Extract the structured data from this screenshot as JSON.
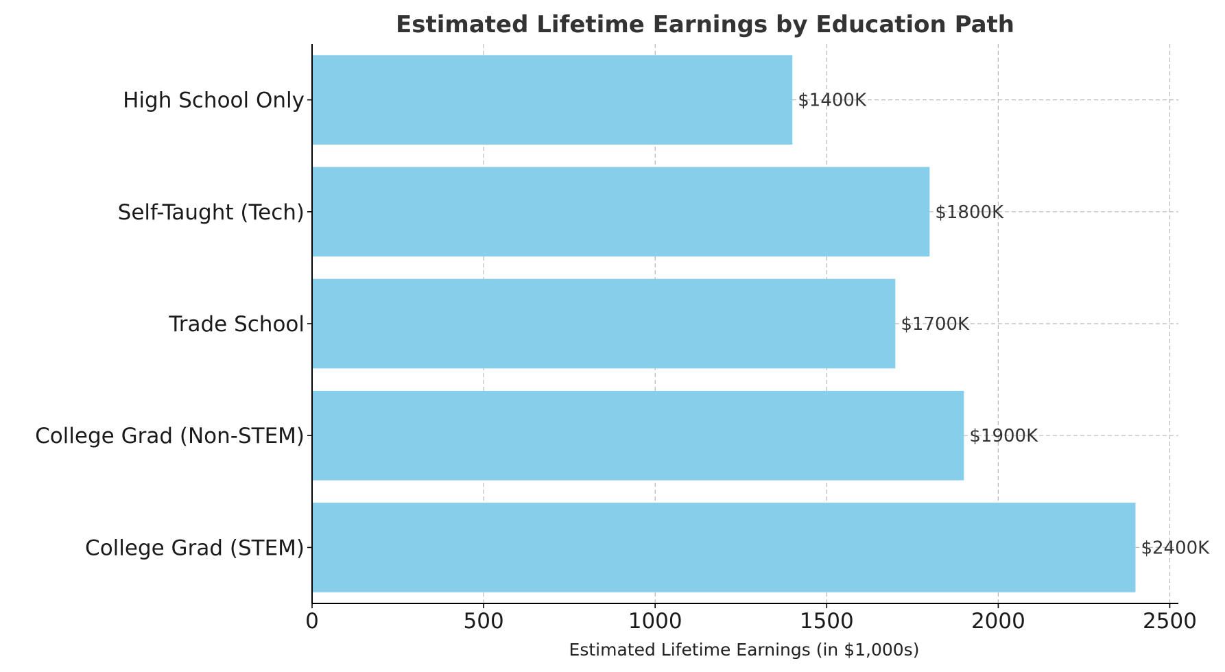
{
  "chart_data": {
    "type": "bar",
    "orientation": "horizontal",
    "title": "Estimated Lifetime Earnings by Education Path",
    "xlabel": "Estimated Lifetime Earnings (in $1,000s)",
    "ylabel": "",
    "xlim": [
      0,
      2525
    ],
    "x_ticks": [
      0,
      500,
      1000,
      1500,
      2000,
      2500
    ],
    "categories": [
      "High School Only",
      "Self-Taught (Tech)",
      "Trade School",
      "College Grad (Non-STEM)",
      "College Grad (STEM)"
    ],
    "values": [
      1400,
      1800,
      1700,
      1900,
      2400
    ],
    "data_labels": [
      "$1400K",
      "$1800K",
      "$1700K",
      "$1900K",
      "$2400K"
    ],
    "bar_color": "#87CEEB",
    "grid": true,
    "grid_style": "dashed",
    "legend": "none"
  }
}
